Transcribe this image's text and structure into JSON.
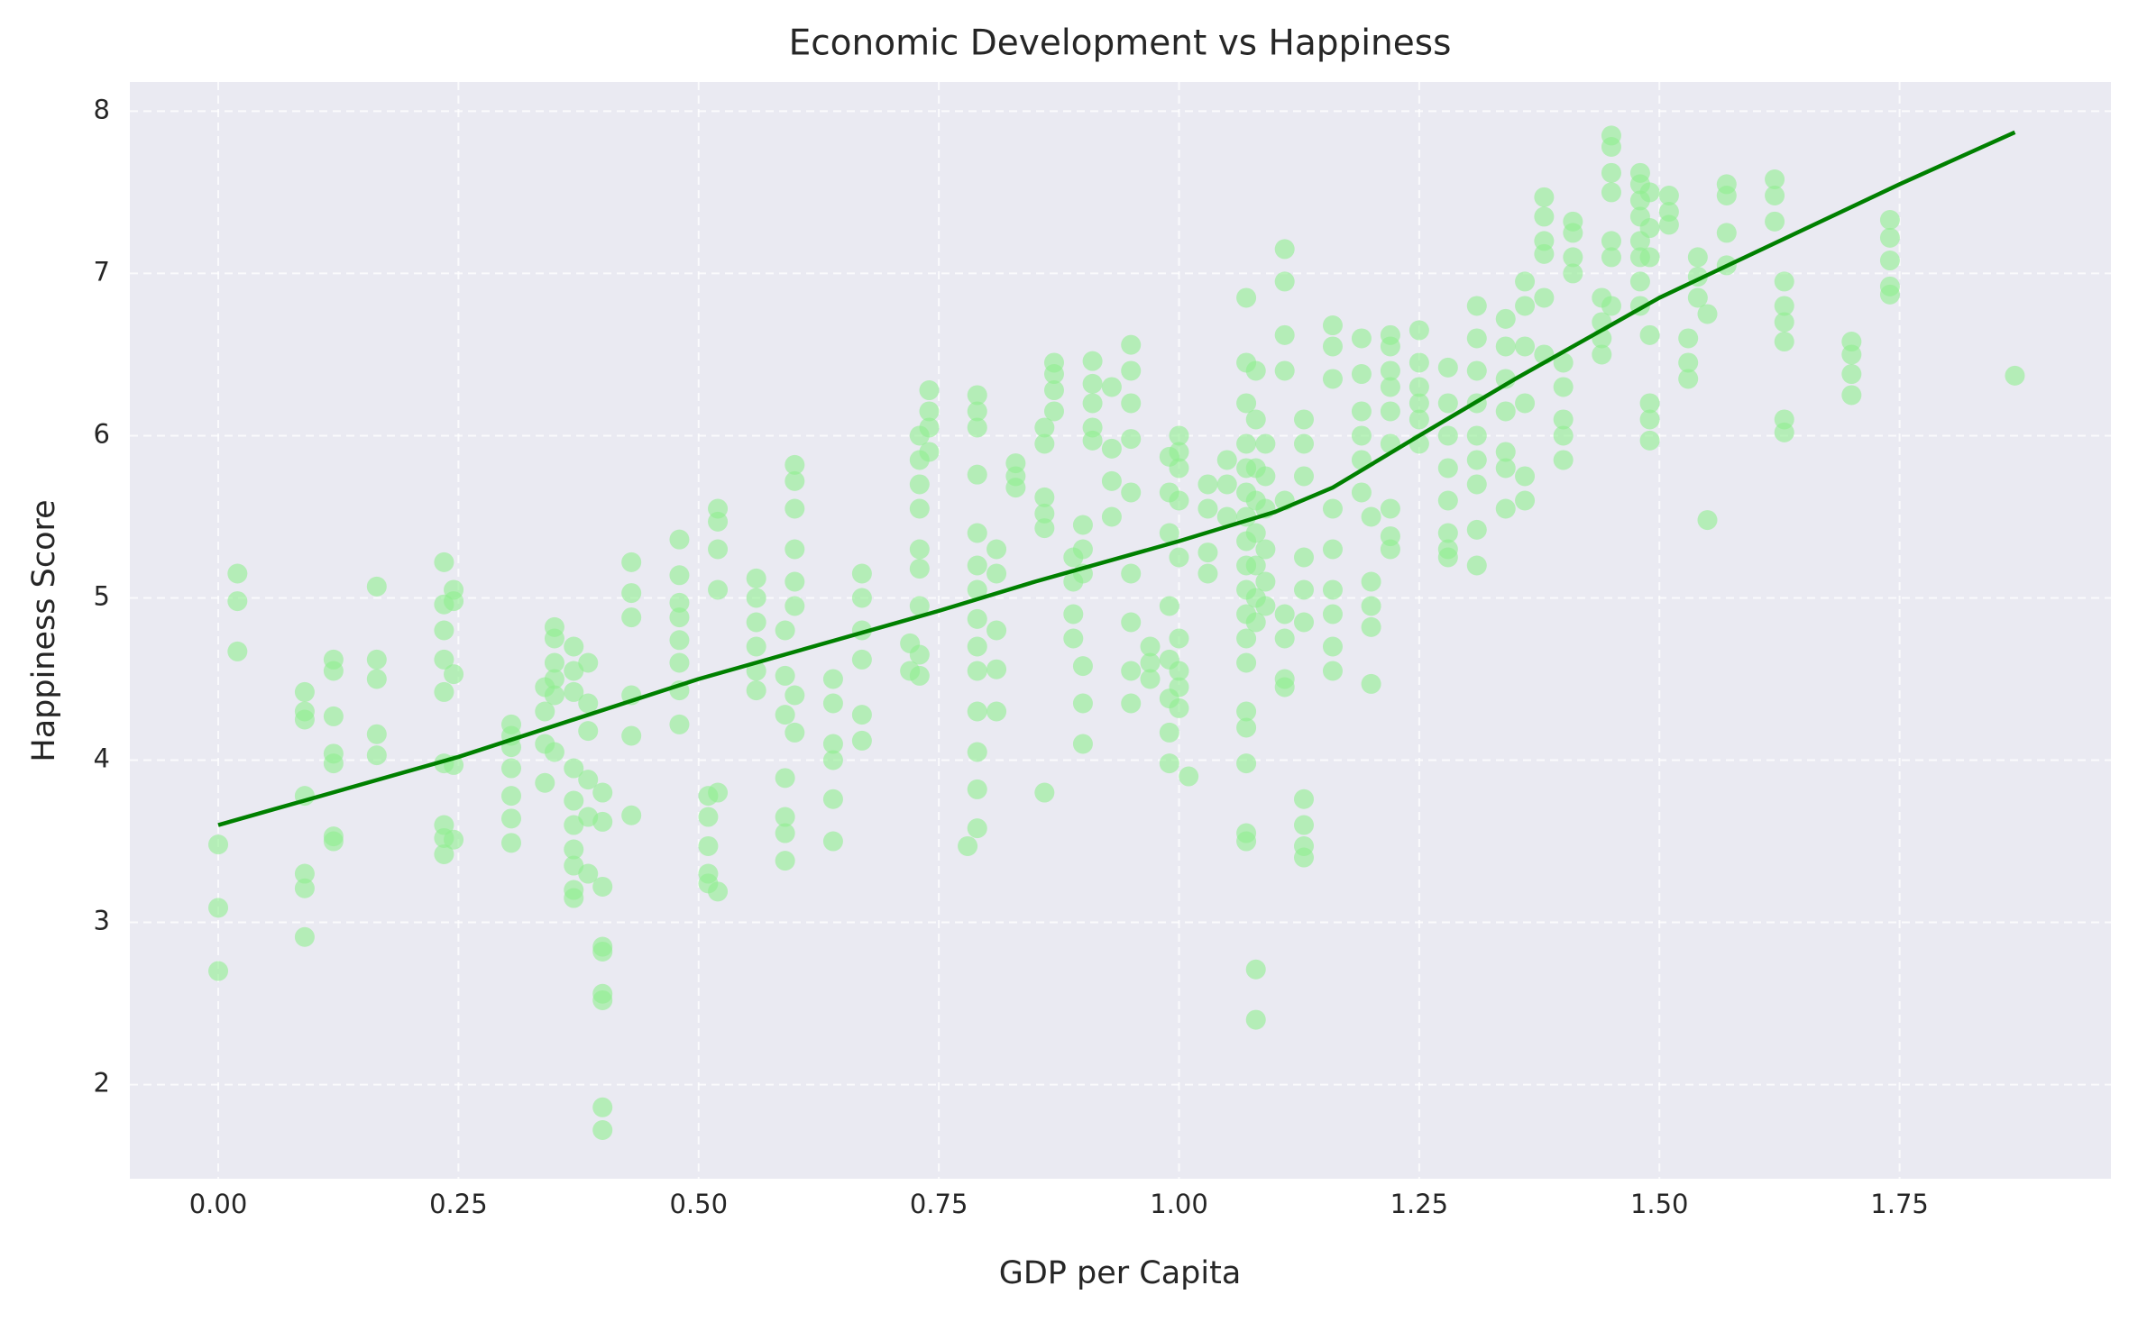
{
  "chart_data": {
    "type": "scatter",
    "title": "Economic Development vs Happiness",
    "x_label": "GDP per Capita",
    "y_label": "Happiness Score",
    "xlim": [
      -0.092,
      1.97
    ],
    "ylim": [
      1.42,
      8.18
    ],
    "xticks": [
      {
        "value": 0,
        "label": "0.00"
      },
      0.25,
      {
        "value": 0.5,
        "label": "0.50"
      },
      0.75,
      {
        "value": 1,
        "label": "1.00"
      },
      1.25,
      {
        "value": 1.5,
        "label": "1.50"
      },
      1.75
    ],
    "yticks": [
      2,
      3,
      4,
      5,
      6,
      7,
      8
    ],
    "grid": true,
    "background": "#eaeaf2",
    "series": [
      {
        "type": "scatter",
        "color": "#90ee90",
        "x": [
          0,
          0,
          0,
          0.02,
          0.02,
          0.02,
          0.09,
          0.09,
          0.09,
          0.09,
          0.09,
          0.09,
          0.09,
          0.12,
          0.12,
          0.12,
          0.12,
          0.12,
          0.12,
          0.12,
          0.165,
          0.165,
          0.165,
          0.165,
          0.165,
          0.235,
          0.235,
          0.235,
          0.235,
          0.235,
          0.235,
          0.235,
          0.235,
          0.235,
          0.245,
          0.245,
          0.245,
          0.245,
          0.245,
          0.305,
          0.305,
          0.305,
          0.305,
          0.305,
          0.305,
          0.305,
          0.34,
          0.34,
          0.34,
          0.34,
          0.35,
          0.35,
          0.35,
          0.35,
          0.35,
          0.35,
          0.37,
          0.37,
          0.37,
          0.37,
          0.37,
          0.37,
          0.37,
          0.37,
          0.37,
          0.37,
          0.385,
          0.385,
          0.385,
          0.385,
          0.385,
          0.385,
          0.4,
          0.4,
          0.4,
          0.4,
          0.4,
          0.4,
          0.4,
          0.4,
          0.4,
          0.43,
          0.43,
          0.43,
          0.43,
          0.43,
          0.43,
          0.48,
          0.48,
          0.48,
          0.48,
          0.48,
          0.48,
          0.48,
          0.48,
          0.51,
          0.51,
          0.51,
          0.51,
          0.51,
          0.52,
          0.52,
          0.52,
          0.52,
          0.52,
          0.52,
          0.56,
          0.56,
          0.56,
          0.56,
          0.56,
          0.56,
          0.59,
          0.59,
          0.59,
          0.59,
          0.59,
          0.59,
          0.59,
          0.6,
          0.6,
          0.6,
          0.6,
          0.6,
          0.6,
          0.6,
          0.6,
          0.64,
          0.64,
          0.64,
          0.64,
          0.64,
          0.64,
          0.67,
          0.67,
          0.67,
          0.67,
          0.67,
          0.67,
          0.72,
          0.72,
          0.73,
          0.73,
          0.73,
          0.73,
          0.73,
          0.73,
          0.73,
          0.73,
          0.73,
          0.74,
          0.74,
          0.74,
          0.74,
          0.78,
          0.79,
          0.79,
          0.79,
          0.79,
          0.79,
          0.79,
          0.79,
          0.79,
          0.79,
          0.79,
          0.79,
          0.79,
          0.79,
          0.79,
          0.81,
          0.81,
          0.81,
          0.81,
          0.81,
          0.83,
          0.83,
          0.83,
          0.86,
          0.86,
          0.86,
          0.86,
          0.86,
          0.86,
          0.87,
          0.87,
          0.87,
          0.87,
          0.89,
          0.89,
          0.89,
          0.89,
          0.9,
          0.9,
          0.9,
          0.9,
          0.9,
          0.9,
          0.91,
          0.91,
          0.91,
          0.91,
          0.91,
          0.93,
          0.93,
          0.93,
          0.93,
          0.95,
          0.95,
          0.95,
          0.95,
          0.95,
          0.95,
          0.95,
          0.95,
          0.95,
          0.97,
          0.97,
          0.97,
          0.99,
          0.99,
          0.99,
          0.99,
          0.99,
          0.99,
          0.99,
          0.99,
          1,
          1,
          1,
          1,
          1,
          1,
          1,
          1,
          1,
          1.01,
          1.03,
          1.03,
          1.03,
          1.03,
          1.05,
          1.05,
          1.05,
          1.07,
          1.07,
          1.07,
          1.07,
          1.07,
          1.07,
          1.07,
          1.07,
          1.07,
          1.07,
          1.07,
          1.07,
          1.07,
          1.07,
          1.07,
          1.07,
          1.07,
          1.07,
          1.08,
          1.08,
          1.08,
          1.08,
          1.08,
          1.08,
          1.08,
          1.08,
          1.08,
          1.08,
          1.09,
          1.09,
          1.09,
          1.09,
          1.09,
          1.09,
          1.11,
          1.11,
          1.11,
          1.11,
          1.11,
          1.11,
          1.11,
          1.11,
          1.11,
          1.13,
          1.13,
          1.13,
          1.13,
          1.13,
          1.13,
          1.13,
          1.13,
          1.13,
          1.13,
          1.16,
          1.16,
          1.16,
          1.16,
          1.16,
          1.16,
          1.16,
          1.16,
          1.16,
          1.19,
          1.19,
          1.19,
          1.19,
          1.19,
          1.19,
          1.2,
          1.2,
          1.2,
          1.2,
          1.2,
          1.22,
          1.22,
          1.22,
          1.22,
          1.22,
          1.22,
          1.22,
          1.22,
          1.22,
          1.25,
          1.25,
          1.25,
          1.25,
          1.25,
          1.25,
          1.28,
          1.28,
          1.28,
          1.28,
          1.28,
          1.28,
          1.28,
          1.28,
          1.31,
          1.31,
          1.31,
          1.31,
          1.31,
          1.31,
          1.31,
          1.31,
          1.31,
          1.34,
          1.34,
          1.34,
          1.34,
          1.34,
          1.34,
          1.34,
          1.36,
          1.36,
          1.36,
          1.36,
          1.36,
          1.36,
          1.38,
          1.38,
          1.38,
          1.38,
          1.38,
          1.38,
          1.4,
          1.4,
          1.4,
          1.4,
          1.4,
          1.41,
          1.41,
          1.41,
          1.41,
          1.44,
          1.44,
          1.44,
          1.44,
          1.45,
          1.45,
          1.45,
          1.45,
          1.45,
          1.45,
          1.45,
          1.48,
          1.48,
          1.48,
          1.48,
          1.48,
          1.48,
          1.48,
          1.48,
          1.49,
          1.49,
          1.49,
          1.49,
          1.49,
          1.49,
          1.49,
          1.51,
          1.51,
          1.51,
          1.53,
          1.53,
          1.53,
          1.54,
          1.54,
          1.54,
          1.55,
          1.55,
          1.57,
          1.57,
          1.57,
          1.57,
          1.62,
          1.62,
          1.62,
          1.63,
          1.63,
          1.63,
          1.63,
          1.63,
          1.63,
          1.7,
          1.7,
          1.7,
          1.7,
          1.74,
          1.74,
          1.74,
          1.74,
          1.74,
          1.87
        ],
        "values": [
          3.48,
          3.09,
          2.7,
          5.15,
          4.98,
          4.67,
          4.42,
          4.3,
          4.25,
          3.78,
          3.3,
          3.21,
          2.91,
          4.62,
          4.55,
          4.27,
          4.04,
          3.98,
          3.53,
          3.5,
          5.07,
          4.62,
          4.5,
          4.16,
          4.03,
          5.22,
          4.96,
          4.8,
          4.62,
          4.42,
          3.98,
          3.6,
          3.52,
          3.42,
          5.05,
          4.98,
          4.53,
          3.97,
          3.51,
          4.22,
          4.15,
          4.08,
          3.95,
          3.78,
          3.64,
          3.49,
          4.45,
          4.3,
          4.1,
          3.86,
          4.82,
          4.75,
          4.6,
          4.5,
          4.4,
          4.05,
          4.7,
          4.55,
          4.42,
          3.95,
          3.75,
          3.6,
          3.45,
          3.35,
          3.2,
          3.15,
          4.6,
          4.35,
          4.18,
          3.88,
          3.65,
          3.3,
          3.8,
          3.62,
          3.22,
          2.85,
          2.82,
          2.56,
          2.52,
          1.86,
          1.72,
          5.22,
          5.03,
          4.88,
          4.4,
          4.15,
          3.66,
          5.36,
          5.14,
          4.97,
          4.88,
          4.74,
          4.6,
          4.43,
          4.22,
          3.78,
          3.65,
          3.47,
          3.3,
          3.24,
          5.55,
          5.47,
          5.3,
          5.05,
          3.8,
          3.19,
          5.12,
          5.0,
          4.85,
          4.7,
          4.55,
          4.43,
          4.8,
          4.52,
          4.28,
          3.89,
          3.65,
          3.55,
          3.38,
          5.82,
          5.72,
          5.55,
          5.3,
          5.1,
          4.95,
          4.4,
          4.17,
          4.5,
          4.35,
          4.1,
          4.0,
          3.76,
          3.5,
          5.15,
          5.0,
          4.8,
          4.62,
          4.28,
          4.12,
          4.72,
          4.55,
          6.0,
          5.85,
          5.7,
          5.55,
          5.3,
          5.18,
          4.95,
          4.65,
          4.52,
          6.28,
          6.15,
          6.05,
          5.9,
          3.47,
          6.25,
          6.15,
          6.05,
          5.76,
          5.4,
          5.2,
          5.05,
          4.87,
          4.7,
          4.55,
          4.3,
          4.05,
          3.82,
          3.58,
          5.3,
          5.15,
          4.8,
          4.56,
          4.3,
          5.83,
          5.75,
          5.68,
          6.05,
          5.95,
          5.62,
          5.52,
          5.43,
          3.8,
          6.45,
          6.38,
          6.28,
          6.15,
          5.25,
          5.1,
          4.9,
          4.75,
          5.45,
          5.3,
          5.15,
          4.58,
          4.35,
          4.1,
          6.46,
          6.32,
          6.2,
          6.05,
          5.97,
          6.3,
          5.92,
          5.72,
          5.5,
          6.56,
          6.4,
          6.2,
          5.98,
          5.65,
          5.15,
          4.85,
          4.55,
          4.35,
          4.7,
          4.6,
          4.5,
          5.87,
          5.65,
          5.4,
          4.95,
          4.62,
          4.38,
          4.17,
          3.98,
          6.0,
          5.9,
          5.8,
          5.6,
          5.25,
          4.75,
          4.55,
          4.45,
          4.32,
          3.9,
          5.7,
          5.55,
          5.28,
          5.15,
          5.85,
          5.7,
          5.5,
          6.85,
          6.45,
          6.2,
          5.95,
          5.8,
          5.65,
          5.5,
          5.35,
          5.2,
          5.05,
          4.9,
          4.75,
          4.6,
          4.3,
          4.2,
          3.98,
          3.55,
          3.5,
          6.4,
          6.1,
          5.8,
          5.6,
          5.4,
          5.2,
          5.0,
          4.85,
          2.71,
          2.4,
          5.95,
          5.75,
          5.55,
          5.3,
          5.1,
          4.95,
          7.15,
          6.95,
          6.62,
          6.4,
          5.6,
          4.9,
          4.75,
          4.5,
          4.45,
          6.1,
          5.95,
          5.75,
          5.25,
          5.05,
          4.85,
          3.76,
          3.6,
          3.47,
          3.4,
          6.68,
          6.55,
          6.35,
          5.55,
          5.3,
          5.05,
          4.9,
          4.7,
          4.55,
          6.6,
          6.38,
          6.15,
          6.0,
          5.85,
          5.65,
          5.5,
          5.1,
          4.95,
          4.82,
          4.47,
          6.62,
          6.55,
          6.4,
          6.3,
          6.15,
          5.95,
          5.55,
          5.38,
          5.3,
          6.65,
          6.45,
          6.3,
          6.2,
          6.1,
          5.95,
          6.42,
          6.2,
          6.0,
          5.8,
          5.6,
          5.4,
          5.3,
          5.25,
          6.8,
          6.6,
          6.4,
          6.2,
          6.0,
          5.85,
          5.7,
          5.42,
          5.2,
          6.72,
          6.55,
          6.35,
          6.15,
          5.9,
          5.8,
          5.55,
          6.95,
          6.8,
          6.55,
          6.2,
          5.75,
          5.6,
          7.47,
          7.35,
          7.2,
          7.12,
          6.85,
          6.5,
          6.45,
          6.3,
          6.1,
          6.0,
          5.85,
          7.32,
          7.25,
          7.1,
          7.0,
          6.85,
          6.7,
          6.6,
          6.5,
          7.85,
          7.78,
          7.62,
          7.5,
          7.2,
          7.1,
          6.8,
          7.62,
          7.55,
          7.45,
          7.35,
          7.2,
          7.1,
          6.95,
          6.8,
          7.5,
          7.28,
          7.1,
          6.62,
          6.2,
          6.1,
          5.97,
          7.48,
          7.38,
          7.3,
          6.6,
          6.45,
          6.35,
          7.1,
          6.98,
          6.85,
          6.75,
          5.48,
          7.55,
          7.48,
          7.25,
          7.05,
          7.58,
          7.48,
          7.32,
          6.95,
          6.8,
          6.7,
          6.58,
          6.1,
          6.02,
          6.58,
          6.5,
          6.38,
          6.25,
          7.33,
          7.22,
          7.08,
          6.92,
          6.87,
          6.37
        ]
      },
      {
        "type": "line",
        "color": "#008000",
        "x": [
          0,
          0.25,
          0.5,
          0.75,
          0.85,
          1.0,
          1.1,
          1.16,
          1.25,
          1.35,
          1.5,
          1.75,
          1.87
        ],
        "values": [
          3.6,
          4.02,
          4.5,
          4.92,
          5.1,
          5.35,
          5.53,
          5.68,
          6.0,
          6.35,
          6.85,
          7.55,
          7.87
        ]
      }
    ]
  }
}
